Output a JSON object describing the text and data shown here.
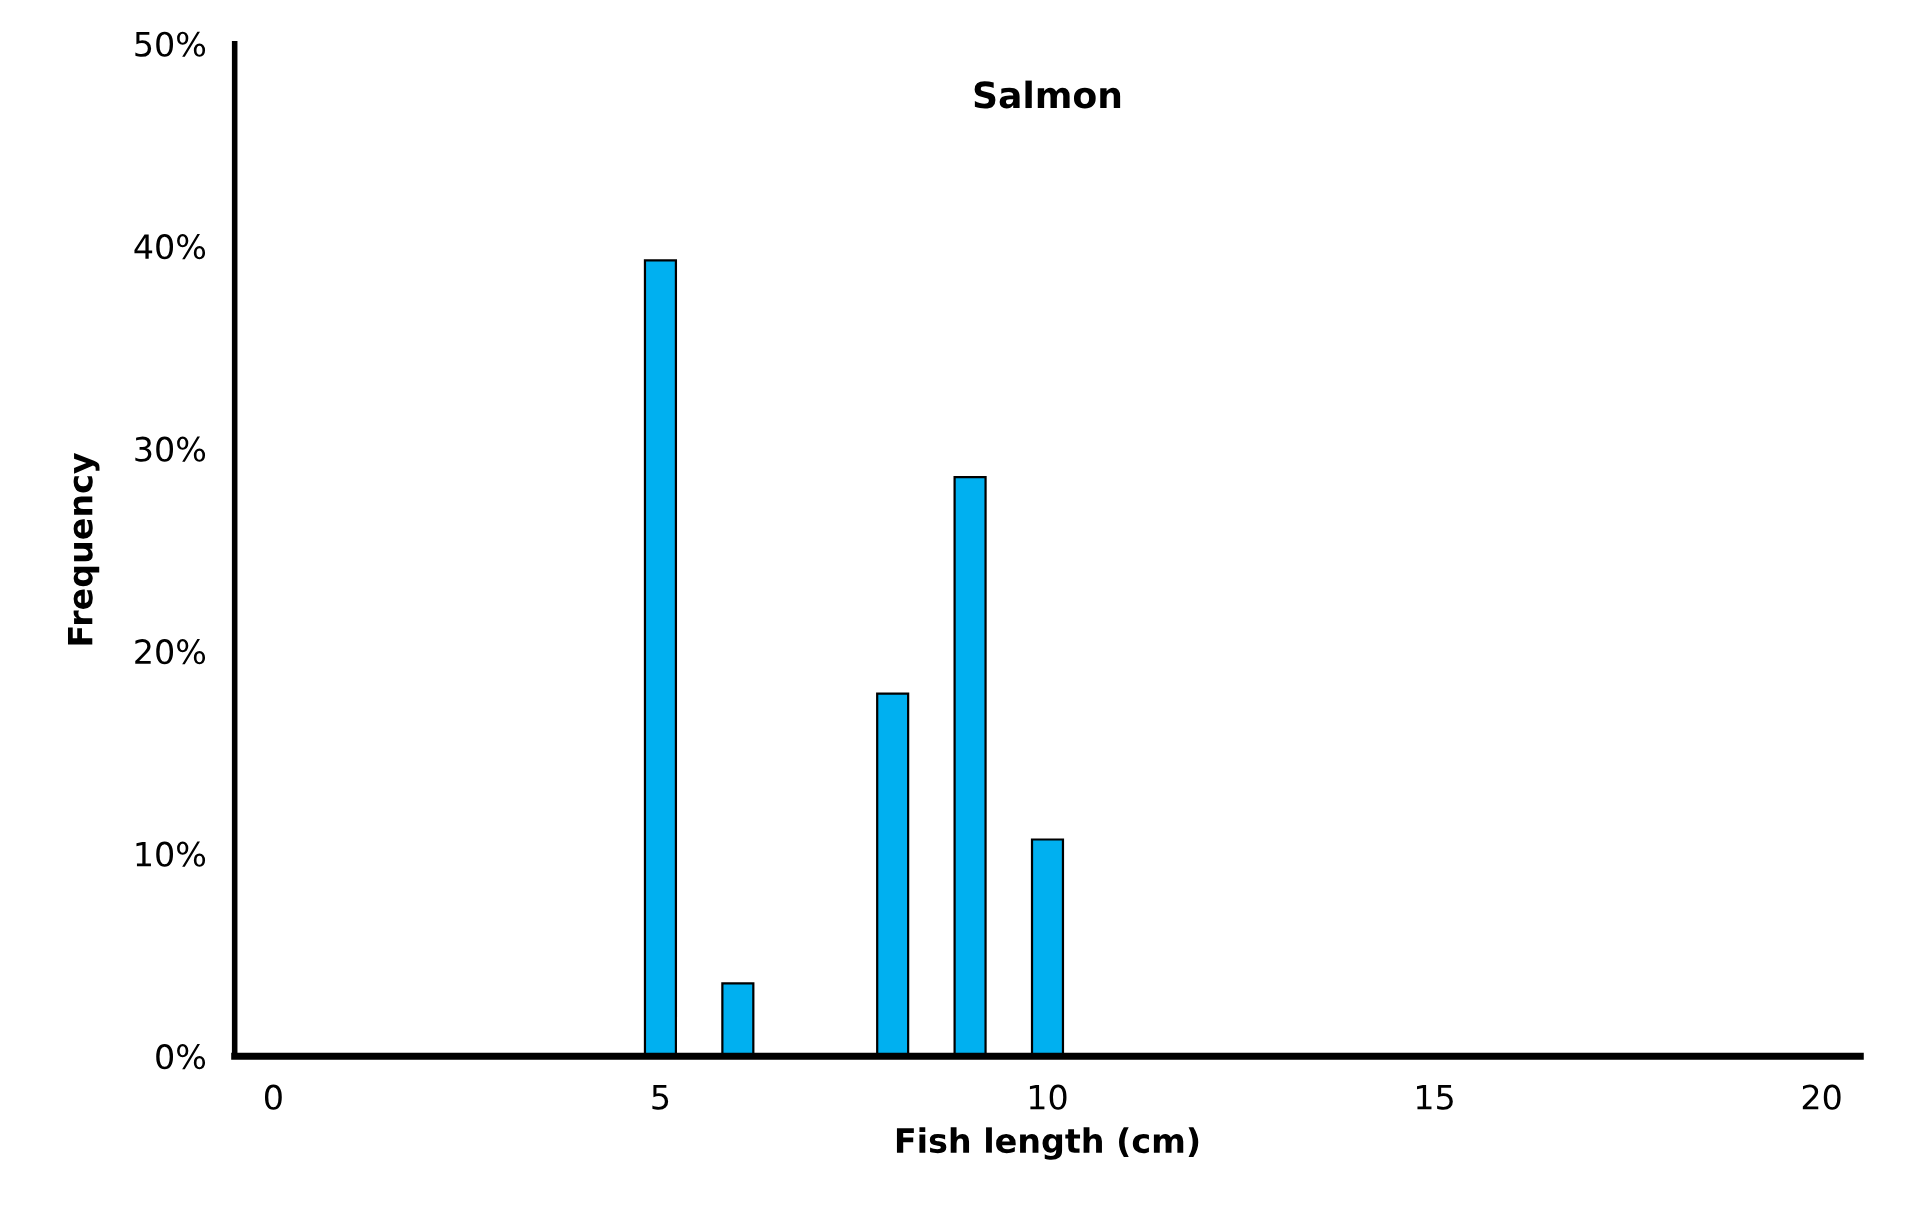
{
  "chart_data": {
    "type": "bar",
    "title": "Salmon",
    "xlabel": "Fish length (cm)",
    "ylabel": "Frequency",
    "x": [
      5,
      6,
      8,
      9,
      10
    ],
    "values": [
      39.3,
      3.6,
      17.9,
      28.6,
      10.7
    ],
    "color": "#00b0f0",
    "xlim": [
      -0.5,
      20.5
    ],
    "xticks": [
      0,
      5,
      10,
      15,
      20
    ],
    "ylim": [
      0,
      50
    ],
    "yticks": [
      {
        "value": 0,
        "label": "0%"
      },
      {
        "value": 10,
        "label": "10%"
      },
      {
        "value": 20,
        "label": "20%"
      },
      {
        "value": 30,
        "label": "30%"
      },
      {
        "value": 40,
        "label": "40%"
      },
      {
        "value": 50,
        "label": "50%"
      }
    ],
    "grid": false,
    "legend": false
  }
}
